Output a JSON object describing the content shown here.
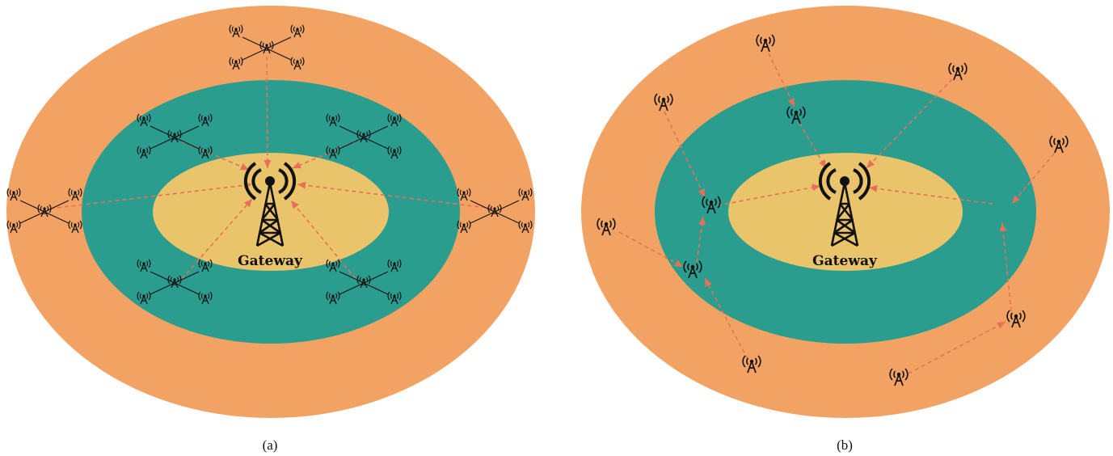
{
  "colors": {
    "outer_ring": "#f2a363",
    "inner_ring": "#2a9d8f",
    "core": "#e9c46a",
    "arrow": "#e8705a",
    "icon": "#111111"
  },
  "icons": {
    "node": "antenna-icon",
    "drone": "drone-icon",
    "gateway": "gateway-tower-icon"
  },
  "panels": [
    {
      "id": "a",
      "gateway_label": "Gateway",
      "caption": "(a)"
    },
    {
      "id": "b",
      "gateway_label": "Gateway",
      "caption": "(b)"
    }
  ]
}
